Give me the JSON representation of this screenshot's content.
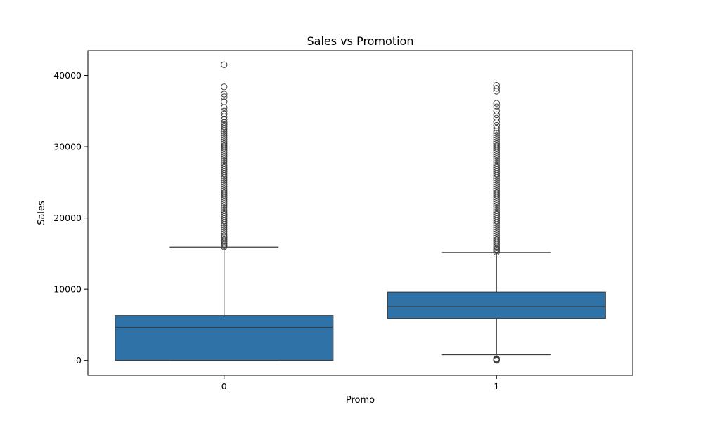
{
  "chart_data": {
    "type": "box",
    "title": "Sales vs Promotion",
    "xlabel": "Promo",
    "ylabel": "Sales",
    "categories": [
      "0",
      "1"
    ],
    "ylim": [
      -2100,
      43500
    ],
    "yticks": [
      0,
      10000,
      20000,
      30000,
      40000
    ],
    "grid": false,
    "legend": "none",
    "color": "#2f72a8",
    "boxes": [
      {
        "category": "0",
        "whisker_low": 0,
        "q1": 0,
        "median": 4650,
        "q3": 6300,
        "whisker_high": 15900,
        "outliers": [
          15950,
          16100,
          16300,
          16500,
          16700,
          16900,
          17100,
          17300,
          17500,
          17800,
          18100,
          18400,
          18700,
          19000,
          19300,
          19600,
          19900,
          20200,
          20500,
          20800,
          21100,
          21400,
          21700,
          22000,
          22300,
          22600,
          22900,
          23200,
          23500,
          23800,
          24100,
          24400,
          24700,
          25000,
          25300,
          25600,
          25900,
          26200,
          26500,
          26800,
          27100,
          27400,
          27700,
          28000,
          28300,
          28600,
          28900,
          29200,
          29500,
          29800,
          30100,
          30400,
          30700,
          31000,
          31300,
          31600,
          31900,
          32200,
          32500,
          32800,
          33100,
          33400,
          33800,
          34200,
          34600,
          35000,
          35500,
          36300,
          37000,
          37400,
          38400,
          41500
        ]
      },
      {
        "category": "1",
        "whisker_low": 800,
        "q1": 5900,
        "median": 7550,
        "q3": 9600,
        "whisker_high": 15150,
        "outliers": [
          0,
          60,
          150,
          250,
          15200,
          15400,
          15600,
          15800,
          16000,
          16300,
          16600,
          16900,
          17200,
          17500,
          17800,
          18100,
          18400,
          18700,
          19000,
          19300,
          19600,
          19900,
          20200,
          20500,
          20800,
          21100,
          21400,
          21700,
          22000,
          22300,
          22600,
          22900,
          23200,
          23500,
          23800,
          24100,
          24400,
          24700,
          25000,
          25300,
          25600,
          25900,
          26200,
          26500,
          26800,
          27100,
          27400,
          27700,
          28000,
          28300,
          28600,
          28900,
          29200,
          29500,
          29800,
          30100,
          30400,
          30700,
          31000,
          31300,
          31600,
          31900,
          32200,
          32600,
          33000,
          33500,
          34000,
          34500,
          35000,
          35600,
          36100,
          37800,
          38200,
          38600
        ]
      }
    ]
  }
}
